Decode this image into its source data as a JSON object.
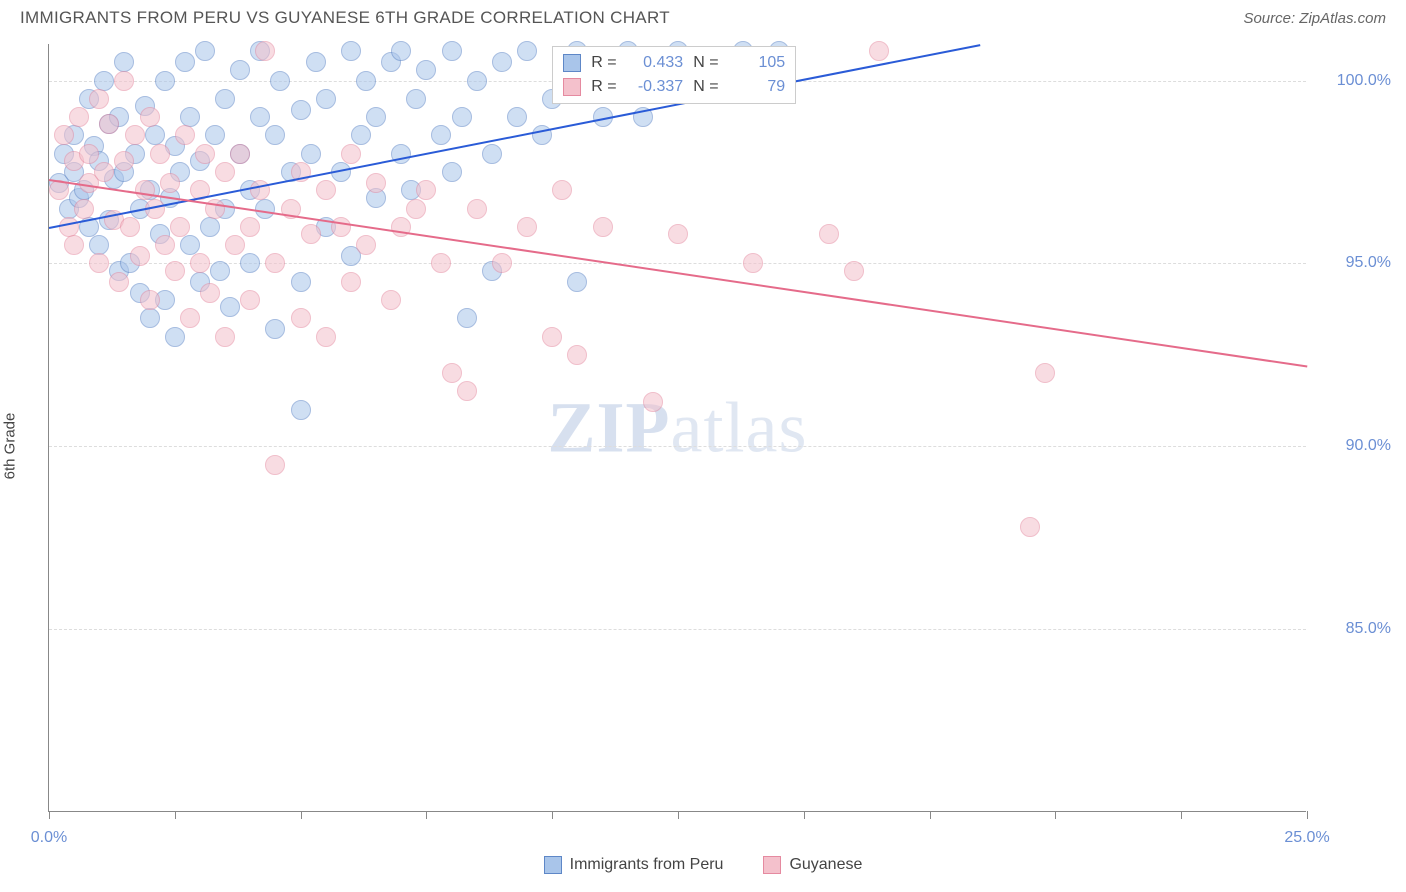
{
  "title": "IMMIGRANTS FROM PERU VS GUYANESE 6TH GRADE CORRELATION CHART",
  "source_label": "Source: ZipAtlas.com",
  "watermark_main": "ZIP",
  "watermark_sub": "atlas",
  "chart": {
    "type": "scatter",
    "background_color": "#ffffff",
    "grid_color": "#dddddd",
    "axis_color": "#888888",
    "text_color": "#444444",
    "value_color": "#6b8fd4",
    "ylabel": "6th Grade",
    "xlim": [
      0,
      25
    ],
    "ylim": [
      80,
      101
    ],
    "ytick_labels": [
      "85.0%",
      "90.0%",
      "95.0%",
      "100.0%"
    ],
    "ytick_values": [
      85,
      90,
      95,
      100
    ],
    "xtick_positions": [
      0,
      2.5,
      5,
      7.5,
      10,
      12.5,
      15,
      17.5,
      20,
      22.5,
      25
    ],
    "xtick_labels": {
      "0": "0.0%",
      "25": "25.0%"
    },
    "marker_radius": 10,
    "marker_opacity": 0.55,
    "line_width": 2,
    "series": [
      {
        "name": "Immigrants from Peru",
        "fill": "#a9c5ea",
        "stroke": "#5e87c7",
        "line_color": "#2a5bd7",
        "R": "0.433",
        "N": "105",
        "regression": {
          "x1": 0,
          "y1": 96.0,
          "x2": 18.5,
          "y2": 101.0
        },
        "points": [
          [
            0.2,
            97.2
          ],
          [
            0.3,
            98.0
          ],
          [
            0.4,
            96.5
          ],
          [
            0.5,
            97.5
          ],
          [
            0.5,
            98.5
          ],
          [
            0.6,
            96.8
          ],
          [
            0.7,
            97.0
          ],
          [
            0.8,
            99.5
          ],
          [
            0.8,
            96.0
          ],
          [
            0.9,
            98.2
          ],
          [
            1.0,
            97.8
          ],
          [
            1.0,
            95.5
          ],
          [
            1.1,
            100.0
          ],
          [
            1.2,
            96.2
          ],
          [
            1.2,
            98.8
          ],
          [
            1.3,
            97.3
          ],
          [
            1.4,
            99.0
          ],
          [
            1.4,
            94.8
          ],
          [
            1.5,
            97.5
          ],
          [
            1.5,
            100.5
          ],
          [
            1.6,
            95.0
          ],
          [
            1.7,
            98.0
          ],
          [
            1.8,
            96.5
          ],
          [
            1.8,
            94.2
          ],
          [
            1.9,
            99.3
          ],
          [
            2.0,
            97.0
          ],
          [
            2.0,
            93.5
          ],
          [
            2.1,
            98.5
          ],
          [
            2.2,
            95.8
          ],
          [
            2.3,
            100.0
          ],
          [
            2.3,
            94.0
          ],
          [
            2.4,
            96.8
          ],
          [
            2.5,
            98.2
          ],
          [
            2.5,
            93.0
          ],
          [
            2.6,
            97.5
          ],
          [
            2.7,
            100.5
          ],
          [
            2.8,
            95.5
          ],
          [
            2.8,
            99.0
          ],
          [
            3.0,
            94.5
          ],
          [
            3.0,
            97.8
          ],
          [
            3.1,
            100.8
          ],
          [
            3.2,
            96.0
          ],
          [
            3.3,
            98.5
          ],
          [
            3.4,
            94.8
          ],
          [
            3.5,
            99.5
          ],
          [
            3.5,
            96.5
          ],
          [
            3.6,
            93.8
          ],
          [
            3.8,
            98.0
          ],
          [
            3.8,
            100.3
          ],
          [
            4.0,
            97.0
          ],
          [
            4.0,
            95.0
          ],
          [
            4.2,
            99.0
          ],
          [
            4.2,
            100.8
          ],
          [
            4.3,
            96.5
          ],
          [
            4.5,
            98.5
          ],
          [
            4.5,
            93.2
          ],
          [
            4.6,
            100.0
          ],
          [
            4.8,
            97.5
          ],
          [
            5.0,
            99.2
          ],
          [
            5.0,
            94.5
          ],
          [
            5.0,
            91.0
          ],
          [
            5.2,
            98.0
          ],
          [
            5.3,
            100.5
          ],
          [
            5.5,
            96.0
          ],
          [
            5.5,
            99.5
          ],
          [
            5.8,
            97.5
          ],
          [
            6.0,
            100.8
          ],
          [
            6.0,
            95.2
          ],
          [
            6.2,
            98.5
          ],
          [
            6.3,
            100.0
          ],
          [
            6.5,
            96.8
          ],
          [
            6.5,
            99.0
          ],
          [
            6.8,
            100.5
          ],
          [
            7.0,
            98.0
          ],
          [
            7.0,
            100.8
          ],
          [
            7.2,
            97.0
          ],
          [
            7.3,
            99.5
          ],
          [
            7.5,
            100.3
          ],
          [
            7.8,
            98.5
          ],
          [
            8.0,
            100.8
          ],
          [
            8.0,
            97.5
          ],
          [
            8.2,
            99.0
          ],
          [
            8.3,
            93.5
          ],
          [
            8.5,
            100.0
          ],
          [
            8.8,
            98.0
          ],
          [
            8.8,
            94.8
          ],
          [
            9.0,
            100.5
          ],
          [
            9.3,
            99.0
          ],
          [
            9.5,
            100.8
          ],
          [
            9.8,
            98.5
          ],
          [
            10.0,
            99.5
          ],
          [
            10.2,
            100.3
          ],
          [
            10.5,
            94.5
          ],
          [
            10.5,
            100.8
          ],
          [
            11.0,
            99.0
          ],
          [
            11.3,
            100.5
          ],
          [
            11.5,
            100.8
          ],
          [
            11.8,
            99.0
          ],
          [
            12.0,
            100.3
          ],
          [
            12.5,
            100.8
          ],
          [
            13.0,
            100.5
          ],
          [
            13.3,
            100.0
          ],
          [
            13.8,
            100.8
          ],
          [
            14.0,
            100.5
          ],
          [
            14.5,
            100.8
          ]
        ]
      },
      {
        "name": "Guyanese",
        "fill": "#f4c1cc",
        "stroke": "#e58aa0",
        "line_color": "#e56b8a",
        "R": "-0.337",
        "N": "79",
        "regression": {
          "x1": 0,
          "y1": 97.3,
          "x2": 25,
          "y2": 92.2
        },
        "points": [
          [
            0.2,
            97.0
          ],
          [
            0.3,
            98.5
          ],
          [
            0.4,
            96.0
          ],
          [
            0.5,
            97.8
          ],
          [
            0.5,
            95.5
          ],
          [
            0.6,
            99.0
          ],
          [
            0.7,
            96.5
          ],
          [
            0.8,
            98.0
          ],
          [
            0.8,
            97.2
          ],
          [
            1.0,
            99.5
          ],
          [
            1.0,
            95.0
          ],
          [
            1.1,
            97.5
          ],
          [
            1.2,
            98.8
          ],
          [
            1.3,
            96.2
          ],
          [
            1.4,
            94.5
          ],
          [
            1.5,
            97.8
          ],
          [
            1.5,
            100.0
          ],
          [
            1.6,
            96.0
          ],
          [
            1.7,
            98.5
          ],
          [
            1.8,
            95.2
          ],
          [
            1.9,
            97.0
          ],
          [
            2.0,
            99.0
          ],
          [
            2.0,
            94.0
          ],
          [
            2.1,
            96.5
          ],
          [
            2.2,
            98.0
          ],
          [
            2.3,
            95.5
          ],
          [
            2.4,
            97.2
          ],
          [
            2.5,
            94.8
          ],
          [
            2.6,
            96.0
          ],
          [
            2.7,
            98.5
          ],
          [
            2.8,
            93.5
          ],
          [
            3.0,
            97.0
          ],
          [
            3.0,
            95.0
          ],
          [
            3.1,
            98.0
          ],
          [
            3.2,
            94.2
          ],
          [
            3.3,
            96.5
          ],
          [
            3.5,
            97.5
          ],
          [
            3.5,
            93.0
          ],
          [
            3.7,
            95.5
          ],
          [
            3.8,
            98.0
          ],
          [
            4.0,
            96.0
          ],
          [
            4.0,
            94.0
          ],
          [
            4.2,
            97.0
          ],
          [
            4.3,
            100.8
          ],
          [
            4.5,
            95.0
          ],
          [
            4.5,
            89.5
          ],
          [
            4.8,
            96.5
          ],
          [
            5.0,
            97.5
          ],
          [
            5.0,
            93.5
          ],
          [
            5.2,
            95.8
          ],
          [
            5.5,
            97.0
          ],
          [
            5.5,
            93.0
          ],
          [
            5.8,
            96.0
          ],
          [
            6.0,
            94.5
          ],
          [
            6.0,
            98.0
          ],
          [
            6.3,
            95.5
          ],
          [
            6.5,
            97.2
          ],
          [
            6.8,
            94.0
          ],
          [
            7.0,
            96.0
          ],
          [
            7.3,
            96.5
          ],
          [
            7.5,
            97.0
          ],
          [
            7.8,
            95.0
          ],
          [
            8.0,
            92.0
          ],
          [
            8.3,
            91.5
          ],
          [
            8.5,
            96.5
          ],
          [
            9.0,
            95.0
          ],
          [
            9.5,
            96.0
          ],
          [
            10.0,
            93.0
          ],
          [
            10.2,
            97.0
          ],
          [
            10.5,
            92.5
          ],
          [
            11.0,
            96.0
          ],
          [
            12.0,
            91.2
          ],
          [
            12.5,
            95.8
          ],
          [
            14.0,
            95.0
          ],
          [
            15.5,
            95.8
          ],
          [
            16.0,
            94.8
          ],
          [
            16.5,
            100.8
          ],
          [
            19.8,
            92.0
          ],
          [
            19.5,
            87.8
          ]
        ]
      }
    ]
  },
  "stats_box": {
    "rows": [
      {
        "swatch_fill": "#a9c5ea",
        "swatch_stroke": "#5e87c7",
        "r_label": "R =",
        "r_val": "0.433",
        "n_label": "N =",
        "n_val": "105"
      },
      {
        "swatch_fill": "#f4c1cc",
        "swatch_stroke": "#e58aa0",
        "r_label": "R =",
        "r_val": "-0.337",
        "n_label": "N =",
        "n_val": "79"
      }
    ]
  },
  "legend": [
    {
      "label": "Immigrants from Peru",
      "fill": "#a9c5ea",
      "stroke": "#5e87c7"
    },
    {
      "label": "Guyanese",
      "fill": "#f4c1cc",
      "stroke": "#e58aa0"
    }
  ]
}
